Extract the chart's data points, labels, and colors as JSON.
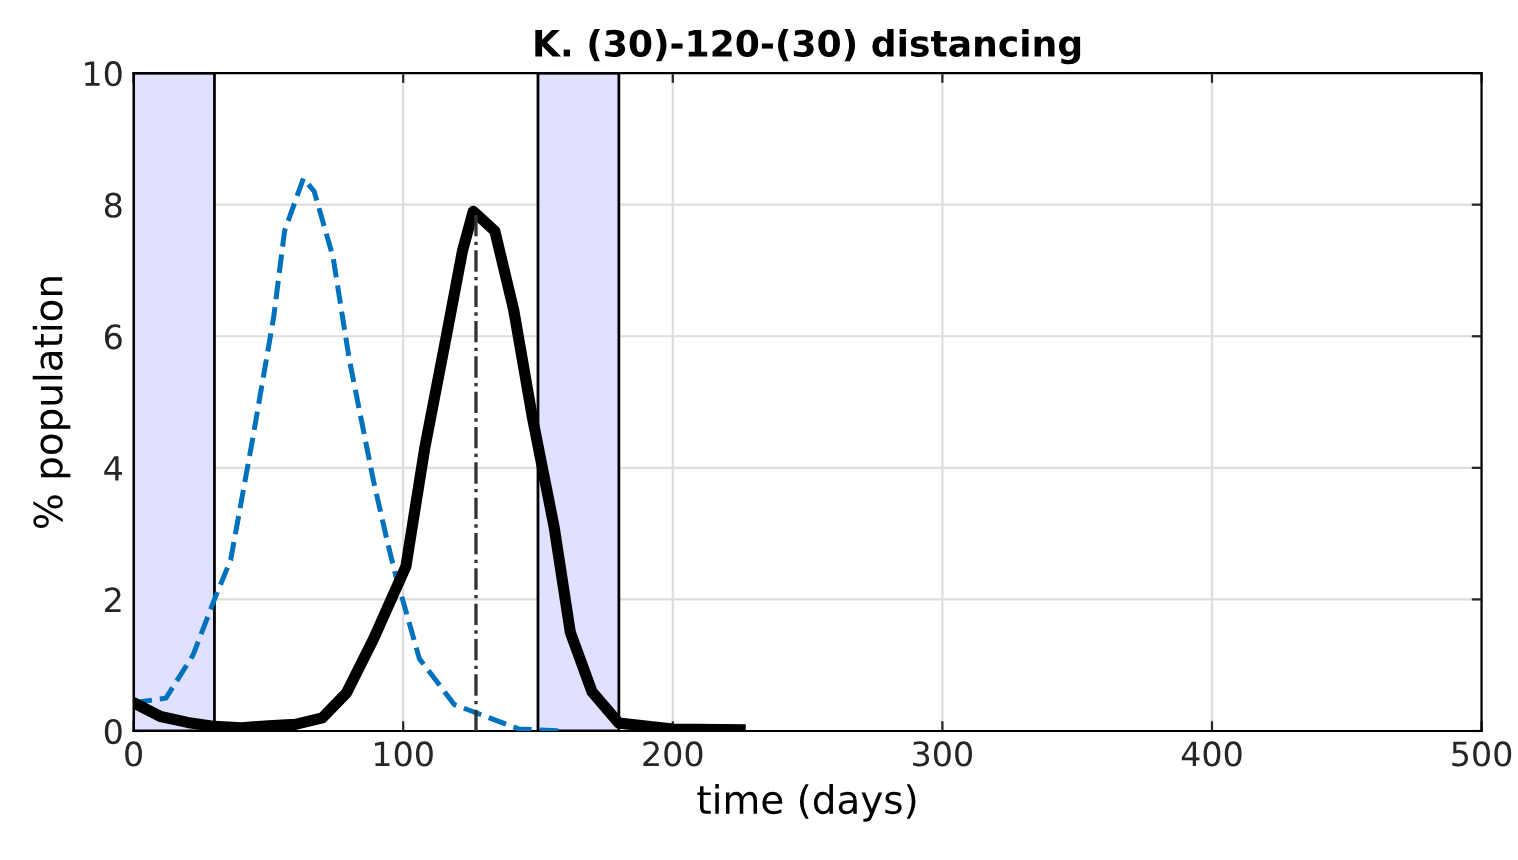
{
  "chart_data": {
    "type": "line",
    "title": "K. (30)-120-(30) distancing",
    "xlabel": "time (days)",
    "ylabel": "% population",
    "xlim": [
      0,
      500
    ],
    "xticks": [
      0,
      100,
      200,
      300,
      400,
      500
    ],
    "ylim": [
      0,
      10
    ],
    "yticks": [
      0,
      2,
      4,
      6,
      8,
      10
    ],
    "grid": true,
    "legend": false,
    "bands": [
      {
        "axis": "x",
        "from": 0,
        "to": 30,
        "color": "#e0e0ff"
      },
      {
        "axis": "x",
        "from": 150,
        "to": 180,
        "color": "#e0e0ff"
      }
    ],
    "series": [
      {
        "color": "#0072bd",
        "line_style": "dashed",
        "x": [
          0,
          12,
          22,
          30,
          36,
          44,
          52,
          56,
          63,
          67,
          74,
          80,
          89,
          94,
          97,
          106,
          119,
          143,
          160
        ],
        "values": [
          0.43,
          0.5,
          1.15,
          2.0,
          2.6,
          4.4,
          6.3,
          7.6,
          8.4,
          8.2,
          7.2,
          5.65,
          3.8,
          2.9,
          2.4,
          1.1,
          0.4,
          0.03,
          0.0
        ]
      },
      {
        "color": "#000000",
        "line_style": "solid",
        "x": [
          0,
          10,
          20,
          30,
          40,
          50,
          60,
          70,
          79,
          89,
          101,
          108,
          116,
          122,
          126,
          134,
          141,
          148,
          156,
          162,
          170,
          180,
          200,
          225
        ],
        "values": [
          0.43,
          0.22,
          0.13,
          0.07,
          0.05,
          0.08,
          0.1,
          0.2,
          0.58,
          1.4,
          2.5,
          4.3,
          6.0,
          7.3,
          7.9,
          7.6,
          6.4,
          4.75,
          3.1,
          1.5,
          0.6,
          0.12,
          0.03,
          0.02
        ]
      },
      {
        "color": "#333333",
        "line_style": "dashdot",
        "x": [
          127,
          127
        ],
        "values": [
          0,
          7.9
        ]
      }
    ]
  }
}
